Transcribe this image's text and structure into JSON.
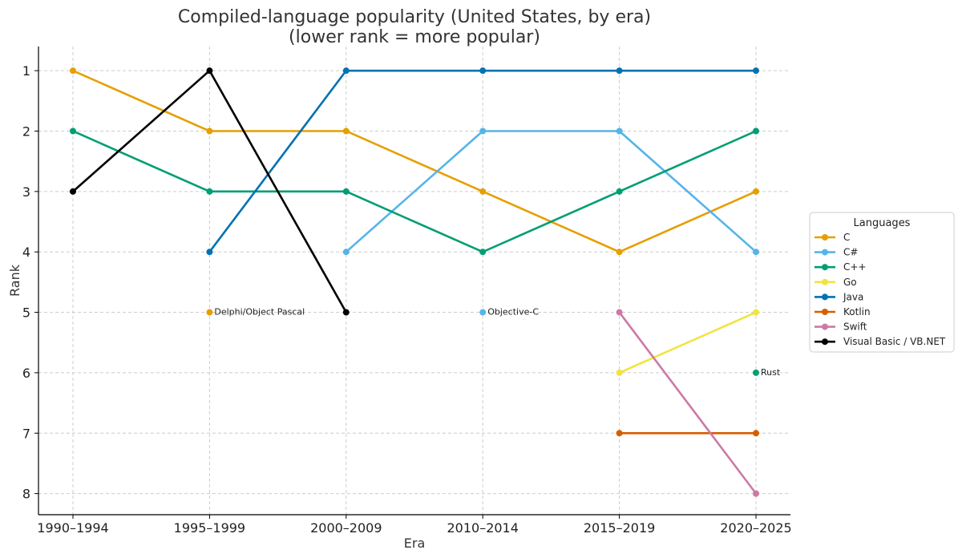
{
  "chart_data": {
    "type": "line",
    "title": "Compiled-language popularity (United States, by era)",
    "subtitle": "(lower rank = more popular)",
    "xlabel": "Era",
    "ylabel": "Rank",
    "categories": [
      "1990–1994",
      "1995–1999",
      "2000–2009",
      "2010–2014",
      "2015–2019",
      "2020–2025"
    ],
    "y_ticks": [
      "1",
      "2",
      "3",
      "4",
      "5",
      "6",
      "7",
      "8"
    ],
    "ylim": [
      8.35,
      0.6
    ],
    "y_inverted": true,
    "grid": true,
    "legend_title": "Languages",
    "legend_position": "right",
    "series": [
      {
        "name": "C",
        "color": "#E69F00",
        "values": [
          1,
          2,
          2,
          3,
          4,
          3
        ]
      },
      {
        "name": "C#",
        "color": "#56B4E9",
        "values": [
          null,
          null,
          4,
          2,
          2,
          4
        ]
      },
      {
        "name": "C++",
        "color": "#009E73",
        "values": [
          2,
          3,
          3,
          4,
          3,
          2
        ]
      },
      {
        "name": "Go",
        "color": "#F0E442",
        "values": [
          null,
          null,
          null,
          null,
          6,
          5
        ]
      },
      {
        "name": "Java",
        "color": "#0072B2",
        "values": [
          null,
          4,
          1,
          1,
          1,
          1
        ]
      },
      {
        "name": "Kotlin",
        "color": "#D55E00",
        "values": [
          null,
          null,
          null,
          null,
          7,
          7
        ]
      },
      {
        "name": "Swift",
        "color": "#CC79A7",
        "values": [
          null,
          null,
          null,
          null,
          5,
          8
        ]
      },
      {
        "name": "Visual Basic / VB.NET",
        "color": "#000000",
        "values": [
          3,
          1,
          5,
          null,
          null,
          null
        ]
      }
    ],
    "annotations": [
      {
        "label": "Delphi/Object Pascal",
        "category": "1995–1999",
        "rank": 5,
        "color": "#E69F00"
      },
      {
        "label": "Objective-C",
        "category": "2010–2014",
        "rank": 5,
        "color": "#56B4E9"
      },
      {
        "label": "Rust",
        "category": "2020–2025",
        "rank": 6,
        "color": "#009E73"
      }
    ]
  }
}
